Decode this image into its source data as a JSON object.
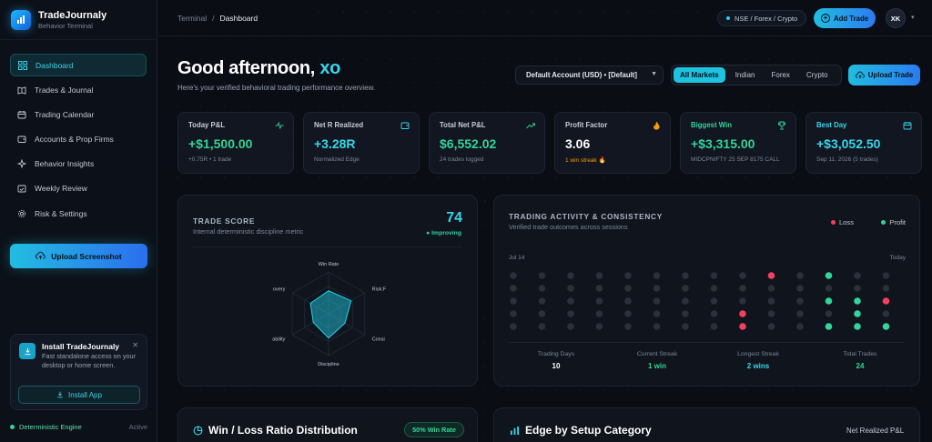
{
  "brand": {
    "name": "TradeJournaly",
    "subtitle": "Behavior Terminal"
  },
  "sidebar": {
    "items": [
      {
        "label": "Dashboard",
        "icon": "grid-icon",
        "active": true
      },
      {
        "label": "Trades & Journal",
        "icon": "book-icon"
      },
      {
        "label": "Trading Calendar",
        "icon": "calendar-icon"
      },
      {
        "label": "Accounts & Prop Firms",
        "icon": "wallet-icon"
      },
      {
        "label": "Behavior Insights",
        "icon": "sparkle-icon"
      },
      {
        "label": "Weekly Review",
        "icon": "calendar-check-icon"
      },
      {
        "label": "Risk & Settings",
        "icon": "gear-icon"
      }
    ],
    "upload_label": "Upload Screenshot",
    "install": {
      "title": "Install TradeJournaly",
      "desc": "Fast standalone access on your desktop or home screen.",
      "button": "Install App"
    },
    "engine": {
      "label": "Deterministic Engine",
      "state": "Active"
    }
  },
  "topbar": {
    "breadcrumb_root": "Terminal",
    "breadcrumb_sep": "/",
    "breadcrumb_current": "Dashboard",
    "markets": "NSE / Forex / Crypto",
    "add_trade": "Add Trade",
    "avatar": "XK"
  },
  "header": {
    "greeting": "Good afternoon,",
    "name": "xo",
    "subtitle": "Here's your verified behavioral trading performance overview.",
    "account": "Default Account (USD) • [Default]",
    "market_tabs": [
      "All Markets",
      "Indian",
      "Forex",
      "Crypto"
    ],
    "upload_trade": "Upload Trade"
  },
  "stats": [
    {
      "title": "Today P&L",
      "value": "+$1,500.00",
      "sub": "+0.75R • 1 trade",
      "icon": "activity-icon"
    },
    {
      "title": "Net R Realized",
      "value": "+3.28R",
      "sub": "Normalized Edge",
      "icon": "wallet-icon"
    },
    {
      "title": "Total Net P&L",
      "value": "$6,552.02",
      "sub": "24 trades logged",
      "icon": "trending-up-icon"
    },
    {
      "title": "Profit Factor",
      "value": "3.06",
      "sub": "1 win streak 🔥",
      "icon": "flame-icon"
    },
    {
      "title": "Biggest Win",
      "value": "+$3,315.00",
      "sub": "MIDCPNIFTY 25 SEP 8175 CALL",
      "icon": "trophy-icon"
    },
    {
      "title": "Best Day",
      "value": "+$3,052.50",
      "sub": "Sep 11, 2026 (5 trades)",
      "icon": "calendar-icon"
    }
  ],
  "trade_score": {
    "title": "TRADE SCORE",
    "subtitle": "Internal deterministic discipline metric",
    "score": "74",
    "state": "● Improving",
    "axes": [
      "Win Rate",
      "Risk:F",
      "Consi",
      "Discipline",
      "ability",
      "overy"
    ],
    "values": [
      0.55,
      0.62,
      0.45,
      0.58,
      0.42,
      0.5
    ]
  },
  "activity": {
    "title": "TRADING ACTIVITY & CONSISTENCY",
    "subtitle": "Verified trade outcomes across sessions",
    "legend_loss": "Loss",
    "legend_profit": "Profit",
    "start_label": "Jul 14",
    "end_label": "Today",
    "grid": [
      [
        0,
        0,
        0,
        0,
        0,
        0,
        0,
        0,
        0,
        0,
        0,
        0,
        0,
        0
      ],
      [
        0,
        0,
        0,
        0,
        0,
        0,
        0,
        0,
        0,
        0,
        0,
        0,
        0,
        0
      ],
      [
        0,
        0,
        0,
        0,
        0,
        0,
        0,
        0,
        0,
        0,
        0,
        0,
        0,
        0
      ],
      [
        0,
        0,
        0,
        0,
        0,
        0,
        0,
        0,
        0,
        0,
        0,
        0,
        0,
        0
      ],
      [
        0,
        0,
        0,
        0,
        0,
        0,
        0,
        0,
        0,
        0,
        0,
        0,
        0,
        0
      ]
    ],
    "summary": [
      {
        "k": "Trading Days",
        "v": "10",
        "color": "#ffffff"
      },
      {
        "k": "Current Streak",
        "v": "1 win",
        "color": "#34d399"
      },
      {
        "k": "Longest Streak",
        "v": "2 wins",
        "color": "#38d6ea"
      },
      {
        "k": "Total Trades",
        "v": "24",
        "color": "#34d399"
      }
    ]
  },
  "winloss": {
    "title": "Win / Loss Ratio Distribution",
    "pill": "50% Win Rate"
  },
  "edge": {
    "title": "Edge by Setup Category",
    "right_label": "Net Realized P&L"
  },
  "colors": {
    "accent": "#38d6ea",
    "profit": "#34d399",
    "loss": "#f43f5e",
    "idle": "#2a303c"
  }
}
